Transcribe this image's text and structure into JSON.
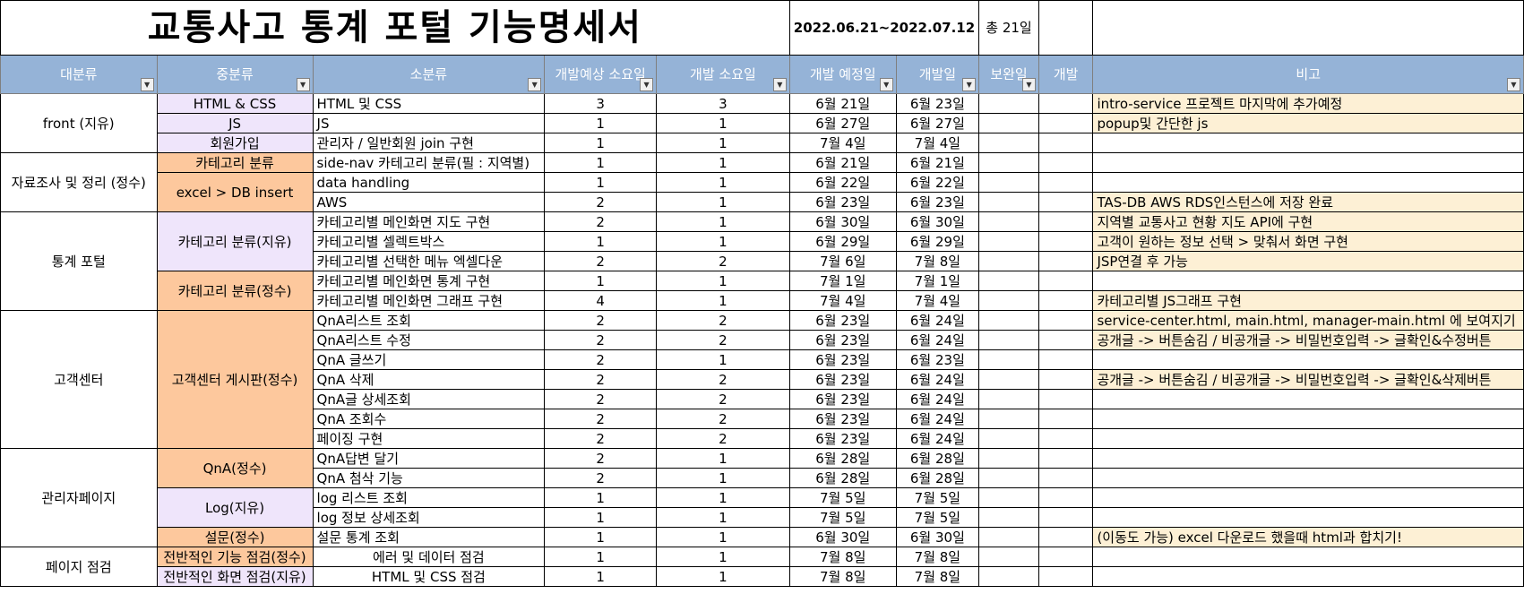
{
  "title": "교통사고 통계 포털 기능명세서",
  "period": "2022.06.21~2022.07.12",
  "total": "총 21일",
  "headers": [
    "대분류",
    "중분류",
    "소분류",
    "개발예상 소요일",
    "개발 소요일",
    "개발 예정일",
    "개발일",
    "보완일",
    "개발",
    "비고"
  ],
  "groups": {
    "front": "front (지유)",
    "data": "자료조사 및 정리 (정수)",
    "stats": "통계 포털",
    "cs": "고객센터",
    "admin": "관리자페이지",
    "check": "페이지 점검"
  },
  "mids": {
    "html": "HTML & CSS",
    "js": "JS",
    "join": "회원가입",
    "cat": "카테고리 분류",
    "excel": "excel > DB insert",
    "cat_jy": "카테고리 분류(지유)",
    "cat_js": "카테고리 분류(정수)",
    "board": "고객센터 게시판(정수)",
    "qna": "QnA(정수)",
    "log": "Log(지유)",
    "survey": "설문(정수)",
    "chk_func": "전반적인 기능 점검(정수)",
    "chk_ui": "전반적인 화면 점검(지유)"
  },
  "rows": [
    {
      "sub": "HTML 및 CSS",
      "est": "3",
      "act": "3",
      "plan": "6월 21일",
      "dev": "6월 23일",
      "note": "intro-service 프로젝트 마지막에 추가예정"
    },
    {
      "sub": "JS",
      "est": "1",
      "act": "1",
      "plan": "6월 27일",
      "dev": "6월 27일",
      "note": "popup및 간단한 js"
    },
    {
      "sub": "관리자 / 일반회원 join 구현",
      "est": "1",
      "act": "1",
      "plan": "7월 4일",
      "dev": "7월 4일",
      "note": ""
    },
    {
      "sub": "side-nav 카테고리 분류(필 : 지역별)",
      "est": "1",
      "act": "1",
      "plan": "6월 21일",
      "dev": "6월 21일",
      "note": ""
    },
    {
      "sub": "data handling",
      "est": "1",
      "act": "1",
      "plan": "6월 22일",
      "dev": "6월 22일",
      "note": ""
    },
    {
      "sub": "AWS",
      "est": "2",
      "act": "1",
      "plan": "6월 23일",
      "dev": "6월 23일",
      "note": "TAS-DB AWS RDS인스턴스에 저장 완료"
    },
    {
      "sub": "카테고리별 메인화면 지도 구현",
      "est": "2",
      "act": "1",
      "plan": "6월 30일",
      "dev": "6월 30일",
      "note": "지역별 교통사고 현황 지도 API에 구현"
    },
    {
      "sub": "카테고리별 셀렉트박스",
      "est": "1",
      "act": "1",
      "plan": "6월 29일",
      "dev": "6월 29일",
      "note": "고객이 원하는 정보 선택 > 맞춰서 화면 구현"
    },
    {
      "sub": "카테고리별 선택한 메뉴 엑셀다운",
      "est": "2",
      "act": "2",
      "plan": "7월 6일",
      "dev": "7월 8일",
      "note": "JSP연결 후 가능"
    },
    {
      "sub": "카테고리별 메인화면 통계 구현",
      "est": "1",
      "act": "1",
      "plan": "7월 1일",
      "dev": "7월 1일",
      "note": ""
    },
    {
      "sub": "카테고리별 메인화면 그래프 구현",
      "est": "4",
      "act": "1",
      "plan": "7월 4일",
      "dev": "7월 4일",
      "note": "카테고리별 JS그래프 구현"
    },
    {
      "sub": "QnA리스트 조회",
      "est": "2",
      "act": "2",
      "plan": "6월 23일",
      "dev": "6월 24일",
      "note": "service-center.html, main.html, manager-main.html 에 보여지기"
    },
    {
      "sub": "QnA리스트 수정",
      "est": "2",
      "act": "2",
      "plan": "6월 23일",
      "dev": "6월 24일",
      "note": "공개글 -> 버튼숨김 / 비공개글 -> 비밀번호입력 -> 글확인&수정버튼"
    },
    {
      "sub": "QnA 글쓰기",
      "est": "2",
      "act": "1",
      "plan": "6월 23일",
      "dev": "6월 23일",
      "note": ""
    },
    {
      "sub": "QnA 삭제",
      "est": "2",
      "act": "2",
      "plan": "6월 23일",
      "dev": "6월 24일",
      "note": "공개글 -> 버튼숨김 / 비공개글 -> 비밀번호입력 -> 글확인&삭제버튼"
    },
    {
      "sub": "QnA글 상세조회",
      "est": "2",
      "act": "2",
      "plan": "6월 23일",
      "dev": "6월 24일",
      "note": ""
    },
    {
      "sub": "QnA 조회수",
      "est": "2",
      "act": "2",
      "plan": "6월 23일",
      "dev": "6월 24일",
      "note": ""
    },
    {
      "sub": "페이징 구현",
      "est": "2",
      "act": "2",
      "plan": "6월 23일",
      "dev": "6월 24일",
      "note": ""
    },
    {
      "sub": "QnA답변 달기",
      "est": "2",
      "act": "1",
      "plan": "6월 28일",
      "dev": "6월 28일",
      "note": ""
    },
    {
      "sub": "QnA 첨삭 기능",
      "est": "2",
      "act": "1",
      "plan": "6월 28일",
      "dev": "6월 28일",
      "note": ""
    },
    {
      "sub": "log 리스트 조회",
      "est": "1",
      "act": "1",
      "plan": "7월 5일",
      "dev": "7월 5일",
      "note": ""
    },
    {
      "sub": "log 정보 상세조회",
      "est": "1",
      "act": "1",
      "plan": "7월 5일",
      "dev": "7월 5일",
      "note": ""
    },
    {
      "sub": "설문 통계 조회",
      "est": "1",
      "act": "1",
      "plan": "6월 30일",
      "dev": "6월 30일",
      "note": "(이동도 가능) excel 다운로드 했을때 html과 합치기!"
    },
    {
      "sub": "에러 및 데이터 점검",
      "est": "1",
      "act": "1",
      "plan": "7월 8일",
      "dev": "7월 8일",
      "note": ""
    },
    {
      "sub": "HTML 및 CSS 점검",
      "est": "1",
      "act": "1",
      "plan": "7월 8일",
      "dev": "7월 8일",
      "note": ""
    }
  ],
  "colors": {
    "header": "#95b3d7",
    "lavender": "#efe5fb",
    "orange": "#fdc89d",
    "cream": "#fdf0d5"
  }
}
